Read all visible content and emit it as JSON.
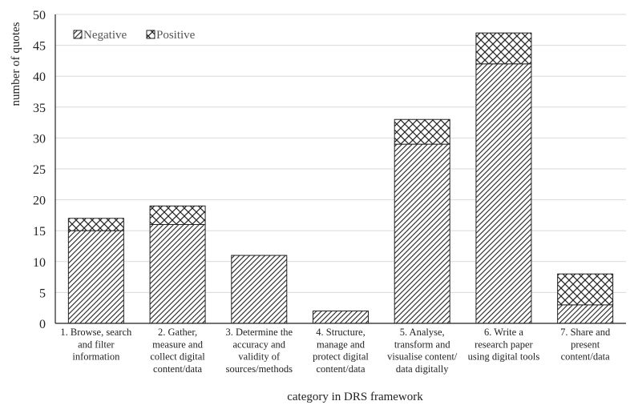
{
  "chart_data": {
    "type": "bar",
    "stacked": true,
    "categories": [
      [
        "1. Browse, search",
        "and filter",
        "information"
      ],
      [
        "2. Gather,",
        "measure and",
        "collect digital",
        "content/data"
      ],
      [
        "3. Determine the",
        "accuracy and",
        "validity of",
        "sources/methods"
      ],
      [
        "4. Structure,",
        "manage and",
        "protect digital",
        "content/data"
      ],
      [
        "5. Analyse,",
        "transform and",
        "visualise content/",
        "data digitally"
      ],
      [
        "6. Write a",
        "research paper",
        "using digital tools"
      ],
      [
        "7. Share and",
        "present",
        "content/data"
      ]
    ],
    "series": [
      {
        "name": "Negative",
        "pattern": "diagonal-hatch",
        "values": [
          15,
          16,
          11,
          2,
          29,
          42,
          3
        ]
      },
      {
        "name": "Positive",
        "pattern": "crosshatch",
        "values": [
          2,
          3,
          0,
          0,
          4,
          5,
          5
        ]
      }
    ],
    "xlabel": "category in DRS framework",
    "ylabel": "number of quotes",
    "ylim": [
      0,
      50
    ],
    "yticks": [
      0,
      5,
      10,
      15,
      20,
      25,
      30,
      35,
      40,
      45,
      50
    ],
    "grid": true,
    "legend_position": "top-left"
  }
}
